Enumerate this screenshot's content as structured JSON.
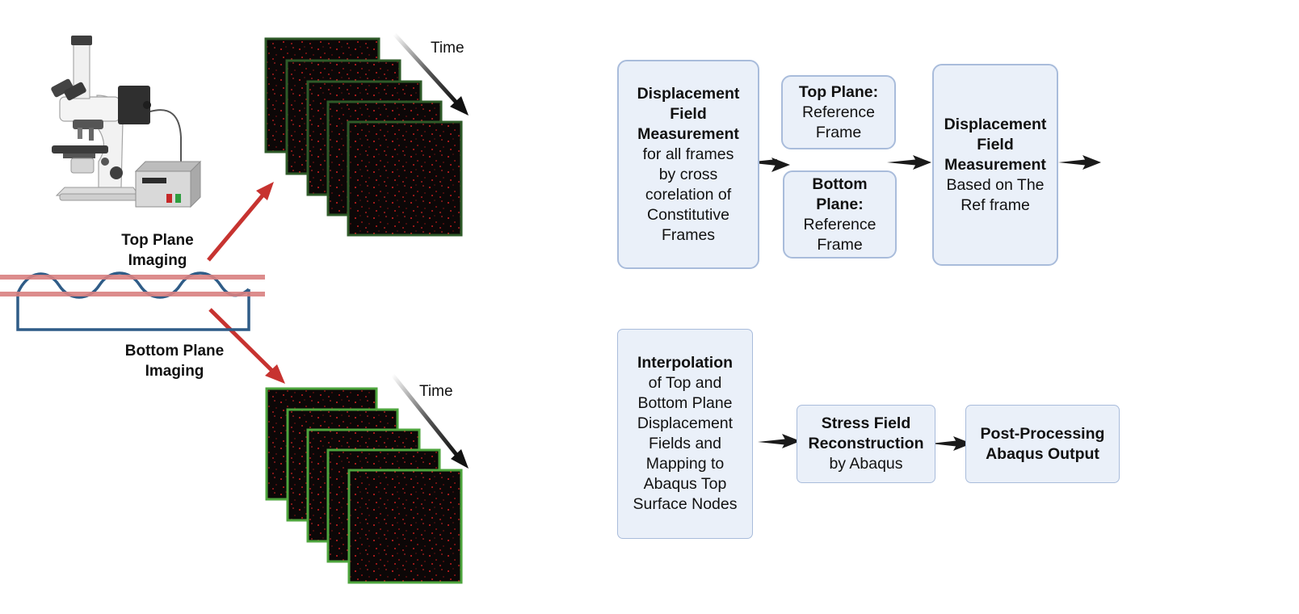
{
  "left": {
    "top_label": "Top Plane Imaging",
    "top_label_lines": [
      "Top Plane",
      "Imaging"
    ],
    "bottom_label": "Bottom Plane Imaging",
    "bottom_label_lines": [
      "Bottom Plane",
      "Imaging"
    ],
    "time_top": "Time",
    "time_bottom": "Time"
  },
  "flow": {
    "box1": {
      "bold": [
        "Displacement",
        "Field",
        "Measurement"
      ],
      "text": [
        "for all frames",
        "by cross",
        "corelation of",
        "Constitutive",
        "Frames"
      ]
    },
    "box2": {
      "bold": [
        "Top Plane:"
      ],
      "text": [
        "Reference",
        "Frame"
      ]
    },
    "box3": {
      "bold": [
        "Bottom",
        "Plane:"
      ],
      "text": [
        "Reference",
        "Frame"
      ]
    },
    "box4": {
      "bold": [
        "Displacement",
        "Field",
        "Measurement"
      ],
      "text": [
        "Based on The",
        "Ref frame"
      ]
    },
    "box5": {
      "bold": [
        "Interpolation"
      ],
      "text": [
        "of Top and",
        "Bottom Plane",
        "Displacement",
        "Fields and",
        "Mapping to",
        "Abaqus Top",
        "Surface Nodes"
      ]
    },
    "box6": {
      "bold": [
        "Stress Field",
        "Reconstruction"
      ],
      "text": [
        "by Abaqus"
      ]
    },
    "box7": {
      "bold": [
        "Post-Processing",
        "Abaqus Output"
      ],
      "text": []
    }
  },
  "colors": {
    "red_arrow": "#c73330",
    "frame_dark_border": "#2e5a28",
    "frame_light_border": "#4ea53d",
    "wave_line": "#2f5c87",
    "plane_lines": "#d98080",
    "box_fill": "#eaf0f9",
    "box_border": "#a9bcdb"
  }
}
